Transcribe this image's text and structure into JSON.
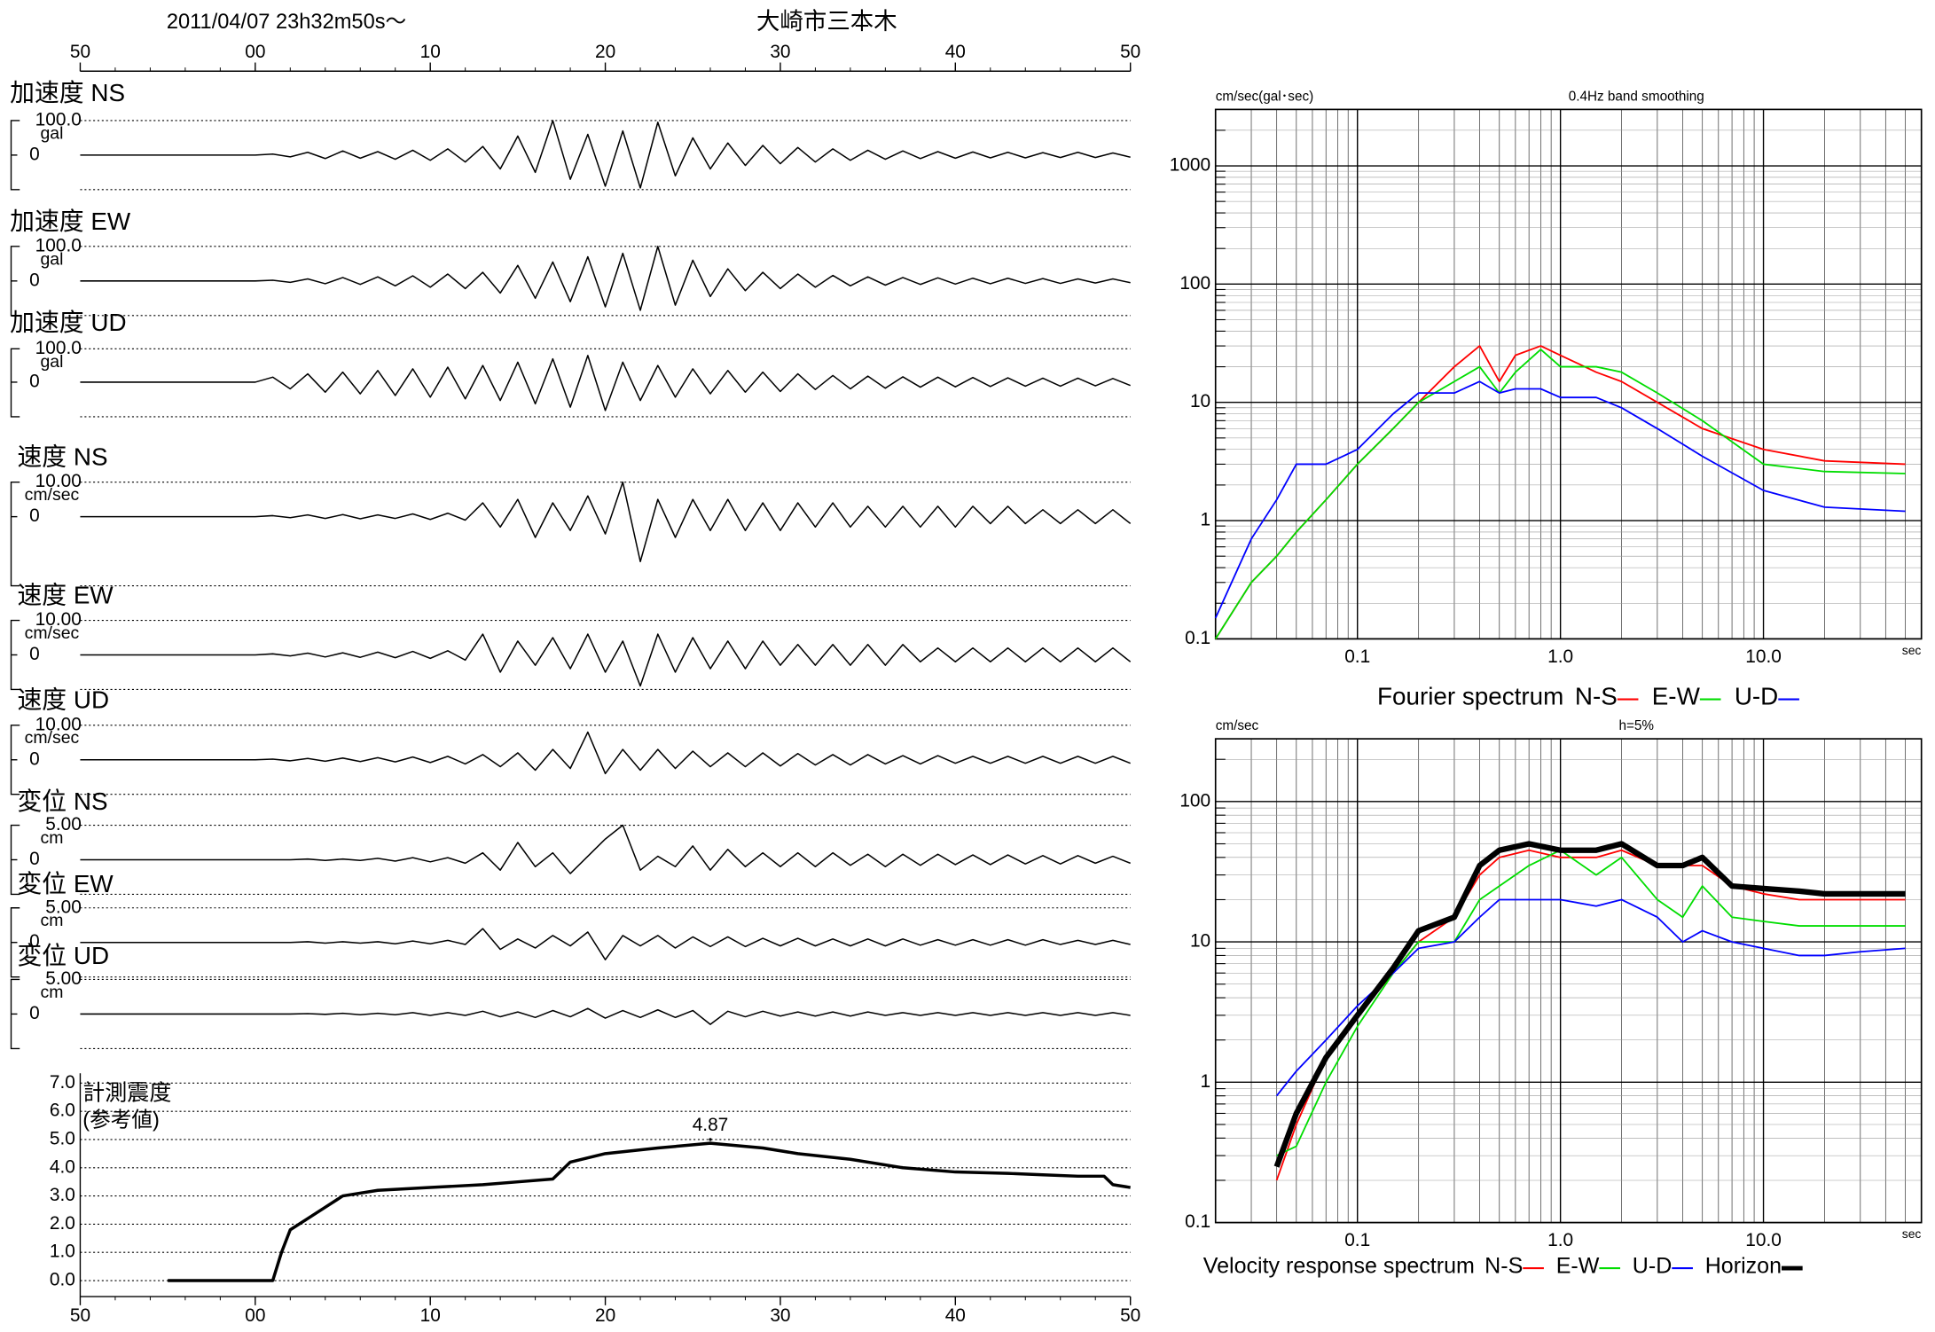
{
  "header": {
    "date": "2011/04/07  23h32m50s〜",
    "station": "大崎市三本木"
  },
  "chart_data": [
    {
      "type": "waveform",
      "x": [
        0,
        10,
        11,
        12,
        13,
        14,
        15,
        16,
        17,
        18,
        19,
        20,
        21,
        22,
        23,
        24,
        25,
        26,
        27,
        28,
        29,
        30,
        31,
        32,
        33,
        34,
        35,
        36,
        37,
        38,
        39,
        40,
        41,
        42,
        43,
        44,
        45,
        46,
        47,
        48,
        49,
        50,
        51,
        52,
        53,
        54,
        55,
        56,
        57,
        58,
        59,
        60
      ],
      "xlim": [
        0,
        60
      ],
      "xticks": [
        {
          "value": 0,
          "label": "50"
        },
        {
          "value": 10,
          "label": "00"
        },
        {
          "value": 20,
          "label": "10"
        },
        {
          "value": 30,
          "label": "20"
        },
        {
          "value": 40,
          "label": "30"
        },
        {
          "value": 50,
          "label": "40"
        },
        {
          "value": 60,
          "label": "50"
        }
      ],
      "series": [
        {
          "name": "加速度 NS",
          "unit": "gal",
          "color": "#000000",
          "ylim": [
            -100,
            100
          ],
          "yticks": [
            {
              "value": 100,
              "label": "100.0"
            },
            0
          ],
          "values": [
            0,
            0,
            3,
            -5,
            8,
            -10,
            12,
            -9,
            10,
            -12,
            14,
            -15,
            18,
            -20,
            25,
            -40,
            55,
            -50,
            100,
            -70,
            60,
            -90,
            70,
            -95,
            95,
            -60,
            50,
            -40,
            35,
            -30,
            28,
            -25,
            22,
            -20,
            18,
            -15,
            14,
            -12,
            12,
            -10,
            10,
            -9,
            9,
            -8,
            8,
            -8,
            7,
            -7,
            8,
            -7,
            6,
            -6
          ]
        },
        {
          "name": "加速度 EW",
          "unit": "gal",
          "color": "#000000",
          "ylim": [
            -100,
            100
          ],
          "yticks": [
            {
              "value": 100,
              "label": "100.0"
            },
            0
          ],
          "values": [
            0,
            0,
            2,
            -4,
            6,
            -8,
            10,
            -10,
            12,
            -14,
            15,
            -18,
            20,
            -22,
            25,
            -35,
            45,
            -50,
            55,
            -60,
            70,
            -75,
            80,
            -85,
            100,
            -70,
            60,
            -45,
            35,
            -28,
            25,
            -22,
            20,
            -18,
            16,
            -14,
            12,
            -12,
            10,
            -10,
            9,
            -9,
            8,
            -8,
            8,
            -7,
            7,
            -7,
            6,
            -6,
            6,
            -5
          ]
        },
        {
          "name": "加速度 UD",
          "unit": "gal",
          "color": "#000000",
          "ylim": [
            -100,
            100
          ],
          "yticks": [
            {
              "value": 100,
              "label": "100.0"
            },
            0
          ],
          "values": [
            0,
            0,
            15,
            -20,
            25,
            -30,
            30,
            -35,
            35,
            -40,
            40,
            -45,
            45,
            -50,
            50,
            -55,
            60,
            -65,
            70,
            -75,
            80,
            -85,
            60,
            -55,
            50,
            -45,
            40,
            -35,
            35,
            -30,
            30,
            -28,
            25,
            -22,
            20,
            -20,
            18,
            -18,
            16,
            -15,
            15,
            -14,
            14,
            -13,
            13,
            -12,
            12,
            -12,
            12,
            -11,
            11,
            -10
          ]
        },
        {
          "name": "速度 NS",
          "unit": "cm/sec",
          "color": "#000000",
          "ylim": [
            -10,
            10
          ],
          "yticks": [
            {
              "value": 10,
              "label": "10.00"
            },
            0
          ],
          "values": [
            0,
            0,
            0.3,
            -0.3,
            0.5,
            -0.5,
            0.6,
            -0.6,
            0.5,
            -0.5,
            0.8,
            -0.8,
            1,
            -1,
            4,
            -3,
            5,
            -6,
            4,
            -4,
            6,
            -5,
            10,
            -13,
            5,
            -6,
            5,
            -4,
            5,
            -4,
            4,
            -4,
            4,
            -3,
            4,
            -3,
            3,
            -3,
            3,
            -3,
            3,
            -3,
            3,
            -2,
            3,
            -2,
            2,
            -2,
            2,
            -2,
            2,
            -2
          ]
        },
        {
          "name": "速度 EW",
          "unit": "cm/sec",
          "color": "#000000",
          "ylim": [
            -10,
            10
          ],
          "yticks": [
            {
              "value": 10,
              "label": "10.00"
            },
            0
          ],
          "values": [
            0,
            0,
            0.3,
            -0.3,
            0.5,
            -0.6,
            0.6,
            -0.7,
            0.8,
            -0.8,
            1,
            -1,
            1.2,
            -1.5,
            6,
            -5,
            4,
            -3,
            5,
            -4,
            6,
            -5,
            4,
            -9,
            6,
            -5,
            5,
            -4,
            4,
            -4,
            4,
            -3,
            3,
            -3,
            3,
            -3,
            3,
            -3,
            3,
            -2,
            2,
            -2,
            2,
            -2,
            2,
            -2,
            2,
            -2,
            2,
            -2,
            2,
            -2
          ]
        },
        {
          "name": "速度 UD",
          "unit": "cm/sec",
          "color": "#000000",
          "ylim": [
            -10,
            10
          ],
          "yticks": [
            {
              "value": 10,
              "label": "10.00"
            },
            0
          ],
          "values": [
            0,
            0,
            0.2,
            -0.3,
            0.4,
            -0.4,
            0.5,
            -0.5,
            0.6,
            -0.6,
            0.8,
            -0.8,
            1,
            -1.2,
            1.5,
            -2,
            2,
            -3,
            3,
            -2.5,
            8,
            -4,
            3,
            -3,
            3,
            -2.5,
            2.5,
            -2,
            2,
            -2,
            2,
            -1.8,
            1.8,
            -1.5,
            1.5,
            -1.5,
            1.5,
            -1.2,
            1.2,
            -1.2,
            1.2,
            -1,
            1,
            -1,
            1,
            -1,
            1,
            -1,
            1,
            -1,
            1,
            -1
          ]
        },
        {
          "name": "変位 NS",
          "unit": "cm",
          "color": "#000000",
          "ylim": [
            -5,
            5
          ],
          "yticks": [
            {
              "value": 5,
              "label": "5.00"
            },
            0
          ],
          "values": [
            0,
            0,
            0,
            0,
            0.1,
            -0.1,
            0.1,
            -0.1,
            0.2,
            -0.2,
            0.3,
            -0.3,
            0.3,
            -0.5,
            1,
            -1.5,
            2.5,
            -1,
            1,
            -2,
            0.5,
            3,
            5,
            -1.5,
            0.5,
            -1,
            2,
            -1.5,
            1.5,
            -1,
            1,
            -1,
            1,
            -1,
            1,
            -0.8,
            0.8,
            -1,
            0.8,
            -0.8,
            0.8,
            -0.7,
            0.7,
            -0.7,
            0.7,
            -0.6,
            0.6,
            -0.6,
            0.6,
            -0.5,
            0.5,
            -0.5
          ]
        },
        {
          "name": "変位 EW",
          "unit": "cm",
          "color": "#000000",
          "ylim": [
            -5,
            5
          ],
          "yticks": [
            {
              "value": 5,
              "label": "5.00"
            },
            0
          ],
          "values": [
            0,
            0,
            0,
            0,
            0.1,
            -0.1,
            0.1,
            -0.1,
            0.1,
            -0.2,
            0.2,
            -0.2,
            0.3,
            -0.3,
            2,
            -1,
            0.5,
            -0.8,
            1,
            -0.5,
            1.5,
            -2.5,
            1,
            -0.5,
            1,
            -0.8,
            0.8,
            -0.6,
            0.8,
            -0.6,
            0.6,
            -0.5,
            0.6,
            -0.5,
            0.5,
            -0.5,
            0.5,
            -0.5,
            0.5,
            -0.4,
            0.4,
            -0.4,
            0.4,
            -0.4,
            0.4,
            -0.4,
            0.4,
            -0.3,
            0.3,
            -0.3,
            0.3,
            -0.3
          ]
        },
        {
          "name": "変位 UD",
          "unit": "cm",
          "color": "#000000",
          "ylim": [
            -5,
            5
          ],
          "yticks": [
            {
              "value": 5,
              "label": "5.00"
            },
            0
          ],
          "values": [
            0,
            0,
            0,
            0,
            0.05,
            -0.05,
            0.1,
            -0.1,
            0.1,
            -0.1,
            0.2,
            -0.2,
            0.2,
            -0.2,
            0.4,
            -0.4,
            0.3,
            -0.5,
            0.5,
            -0.4,
            0.8,
            -0.6,
            0.5,
            -0.5,
            0.6,
            -0.5,
            0.5,
            -1.5,
            0.4,
            -0.4,
            0.4,
            -0.3,
            0.3,
            -0.3,
            0.3,
            -0.3,
            0.3,
            -0.2,
            0.2,
            -0.2,
            0.2,
            -0.2,
            0.2,
            -0.2,
            0.2,
            -0.2,
            0.2,
            -0.2,
            0.2,
            -0.2,
            0.2,
            -0.2
          ]
        }
      ]
    },
    {
      "type": "line",
      "title": "計測震度",
      "subtitle": "(参考値)",
      "color": "#000000",
      "x": [
        5,
        11,
        11.5,
        12,
        13,
        14,
        15,
        17,
        20,
        23,
        25,
        27,
        28,
        30,
        33,
        36,
        39,
        41,
        44,
        47,
        50,
        53,
        55,
        57,
        58.5,
        59,
        60
      ],
      "values": [
        0,
        0,
        1,
        1.8,
        2.2,
        2.6,
        3,
        3.2,
        3.3,
        3.4,
        3.5,
        3.6,
        4.2,
        4.5,
        4.7,
        4.87,
        4.7,
        4.5,
        4.3,
        4.0,
        3.85,
        3.8,
        3.75,
        3.7,
        3.7,
        3.4,
        3.3
      ],
      "xlim": [
        0,
        60
      ],
      "xticks": [
        {
          "value": 0,
          "label": "50"
        },
        {
          "value": 10,
          "label": "00"
        },
        {
          "value": 20,
          "label": "10"
        },
        {
          "value": 30,
          "label": "20"
        },
        {
          "value": 40,
          "label": "30"
        },
        {
          "value": 50,
          "label": "40"
        },
        {
          "value": 60,
          "label": "50"
        }
      ],
      "ylim": [
        0,
        7
      ],
      "yticks": [
        {
          "value": 0,
          "label": "0.0"
        },
        {
          "value": 1,
          "label": "1.0"
        },
        {
          "value": 2,
          "label": "2.0"
        },
        {
          "value": 3,
          "label": "3.0"
        },
        {
          "value": 4,
          "label": "4.0"
        },
        {
          "value": 5,
          "label": "5.0"
        },
        {
          "value": 6,
          "label": "6.0"
        },
        {
          "value": 7,
          "label": "7.0"
        }
      ],
      "grid": true,
      "annotations": [
        {
          "x": 36,
          "y": 4.87,
          "text": "4.87"
        }
      ]
    },
    {
      "type": "loglog",
      "title": "Fourier spectrum",
      "subtitle": "0.4Hz band smoothing",
      "y_label": "cm/sec(gal･sec)",
      "x_label": "sec",
      "x": [
        0.02,
        0.03,
        0.04,
        0.05,
        0.07,
        0.1,
        0.15,
        0.2,
        0.3,
        0.4,
        0.5,
        0.6,
        0.8,
        1,
        1.5,
        2,
        3,
        5,
        10,
        20,
        50
      ],
      "xlim": [
        0.02,
        60
      ],
      "xticks": [
        0.1,
        {
          "value": 1,
          "label": "1.0"
        },
        {
          "value": 10,
          "label": "10.0"
        }
      ],
      "ylim": [
        0.1,
        3000
      ],
      "yticks": [
        0.1,
        1,
        10,
        100,
        1000
      ],
      "log_x": true,
      "log_y": true,
      "grid": true,
      "series": [
        {
          "name": "N-S",
          "color": "#ff0000",
          "width": 1,
          "values": [
            0.1,
            0.3,
            0.5,
            0.8,
            1.5,
            3,
            6,
            10,
            20,
            30,
            15,
            25,
            30,
            25,
            18,
            15,
            10,
            6,
            4,
            3.2,
            3
          ]
        },
        {
          "name": "E-W",
          "color": "#00dd00",
          "width": 1,
          "values": [
            0.1,
            0.3,
            0.5,
            0.8,
            1.5,
            3,
            6,
            10,
            15,
            20,
            12,
            18,
            28,
            20,
            20,
            18,
            12,
            7,
            3,
            2.6,
            2.5
          ]
        },
        {
          "name": "U-D",
          "color": "#0000ff",
          "width": 1,
          "values": [
            0.15,
            0.7,
            1.5,
            3,
            3,
            4,
            8,
            12,
            12,
            15,
            12,
            13,
            13,
            11,
            11,
            9,
            6,
            3.5,
            1.8,
            1.3,
            1.2
          ]
        }
      ]
    },
    {
      "type": "loglog",
      "title": "Velocity response spectrum",
      "subtitle": "h=5%",
      "y_label": "cm/sec",
      "x_label": "sec",
      "x": [
        0.04,
        0.05,
        0.07,
        0.1,
        0.15,
        0.2,
        0.3,
        0.4,
        0.5,
        0.7,
        1,
        1.5,
        2,
        3,
        4,
        5,
        7,
        10,
        15,
        20,
        30,
        50
      ],
      "xlim": [
        0.02,
        60
      ],
      "xticks": [
        0.1,
        {
          "value": 1,
          "label": "1.0"
        },
        {
          "value": 10,
          "label": "10.0"
        }
      ],
      "ylim": [
        0.1,
        280
      ],
      "yticks": [
        0.1,
        1,
        10,
        100
      ],
      "log_x": true,
      "log_y": true,
      "grid": true,
      "series": [
        {
          "name": "N-S",
          "color": "#ff0000",
          "width": 1,
          "values": [
            0.2,
            0.5,
            1.5,
            3,
            6,
            10,
            15,
            30,
            40,
            45,
            40,
            40,
            45,
            35,
            35,
            35,
            25,
            22,
            20,
            20,
            20,
            20
          ]
        },
        {
          "name": "E-W",
          "color": "#00dd00",
          "width": 1,
          "values": [
            0.3,
            0.35,
            1,
            2.5,
            6,
            10,
            10,
            20,
            25,
            35,
            45,
            30,
            40,
            20,
            15,
            25,
            15,
            14,
            13,
            13,
            13,
            13
          ]
        },
        {
          "name": "U-D",
          "color": "#0000ff",
          "width": 1,
          "values": [
            0.8,
            1.2,
            2,
            3.5,
            6,
            9,
            10,
            15,
            20,
            20,
            20,
            18,
            20,
            15,
            10,
            12,
            10,
            9,
            8,
            8,
            8.5,
            9
          ]
        },
        {
          "name": "Horizon",
          "color": "#000000",
          "width": 3.5,
          "values": [
            0.25,
            0.6,
            1.5,
            3,
            6.5,
            12,
            15,
            35,
            45,
            50,
            45,
            45,
            50,
            35,
            35,
            40,
            25,
            24,
            23,
            22,
            22,
            22
          ]
        }
      ]
    }
  ]
}
